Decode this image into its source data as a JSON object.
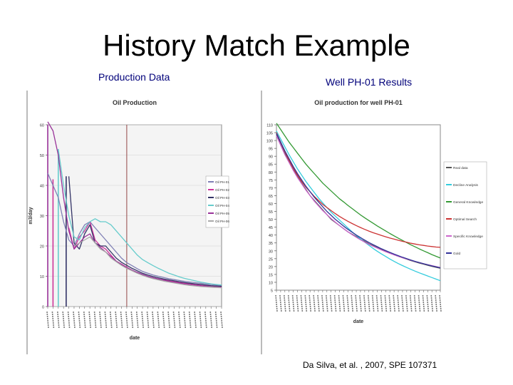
{
  "slide": {
    "title": "History Match Example",
    "left_label": "Production Data",
    "right_label": "Well PH-01 Results",
    "citation": "Da Silva, et al. , 2007, SPE 107371"
  },
  "chart_data": [
    {
      "type": "line",
      "title": "Oil Production",
      "xlabel": "date",
      "ylabel": "m3/day",
      "ylim": [
        0,
        60
      ],
      "yticks": [
        0,
        10,
        20,
        30,
        40,
        50,
        60
      ],
      "x": [
        0,
        1,
        2,
        3,
        4,
        5,
        6,
        7,
        8,
        9,
        10,
        11,
        12,
        13,
        14,
        15,
        16,
        17,
        18,
        19,
        20,
        21,
        22,
        23,
        24,
        25,
        26,
        27,
        28,
        29,
        30,
        31,
        32,
        33
      ],
      "grid": true,
      "legend_position": "right",
      "marker_x": 15,
      "series": [
        {
          "name": "Oil PH-01",
          "color": "#7f7fb5",
          "values": [
            44,
            40,
            36,
            28,
            22,
            20,
            24,
            27,
            28,
            26,
            24,
            22,
            20,
            18,
            16,
            14.5,
            13.5,
            12.5,
            11.6,
            11,
            10.4,
            10,
            9.6,
            9.2,
            8.9,
            8.6,
            8.3,
            8.1,
            7.9,
            7.7,
            7.5,
            7.3,
            7.1,
            7
          ]
        },
        {
          "name": "Oil PH-02",
          "color": "#cc3399",
          "values": [
            null,
            null,
            null,
            null,
            26,
            19,
            23,
            25,
            28,
            22,
            20,
            19,
            17,
            15,
            14,
            13,
            12,
            11.2,
            10.5,
            10,
            9.5,
            9.1,
            8.8,
            8.5,
            8.2,
            7.9,
            7.7,
            7.5,
            7.3,
            7.1,
            6.9,
            6.8,
            6.7,
            6.6
          ]
        },
        {
          "name": "Oil PH-03",
          "color": "#333366",
          "values": [
            null,
            null,
            null,
            null,
            43,
            21,
            19,
            24,
            27,
            21,
            20,
            20,
            18,
            16,
            14.6,
            13.6,
            12.6,
            11.8,
            11,
            10.4,
            9.9,
            9.5,
            9.1,
            8.8,
            8.5,
            8.2,
            7.9,
            7.7,
            7.5,
            7.3,
            7.1,
            6.9,
            6.8,
            6.7
          ]
        },
        {
          "name": "Oil PH-04",
          "color": "#66cccc",
          "values": [
            null,
            null,
            52,
            40,
            30,
            23,
            22,
            26,
            28,
            29,
            28,
            28,
            27,
            25,
            23,
            21,
            19,
            17,
            15.5,
            14.5,
            13.5,
            12.6,
            11.8,
            11,
            10.4,
            9.8,
            9.3,
            8.9,
            8.5,
            8.1,
            7.8,
            7.5,
            7.3,
            7.1
          ]
        },
        {
          "name": "Oil PH-05",
          "color": "#993399",
          "values": [
            61,
            58,
            50,
            36,
            25,
            19,
            21,
            23,
            24,
            21,
            19.5,
            18,
            16.5,
            15,
            13.8,
            12.8,
            12,
            11.3,
            10.6,
            10,
            9.5,
            9.1,
            8.7,
            8.3,
            8,
            7.7,
            7.4,
            7.2,
            7,
            6.8,
            6.6,
            6.5,
            6.4,
            6.3
          ]
        },
        {
          "name": "Oil PH-06",
          "color": "#aaaaaa",
          "values": [
            null,
            null,
            null,
            null,
            null,
            20,
            21,
            22,
            23,
            21,
            19,
            18,
            16,
            14.8,
            13.6,
            12.6,
            11.8,
            11,
            10.3,
            9.7,
            9.2,
            8.8,
            8.4,
            8.1,
            7.8,
            7.5,
            7.2,
            7,
            6.8,
            6.6,
            6.5,
            6.4,
            6.3,
            6.2
          ]
        }
      ],
      "drop_lines": [
        {
          "x": 0,
          "from": 60,
          "color": "#993399"
        },
        {
          "x": 1,
          "from": 42,
          "color": "#cc3399"
        },
        {
          "x": 2,
          "from": 52,
          "color": "#66cccc"
        },
        {
          "x": 3.5,
          "from": 43,
          "color": "#333366"
        }
      ]
    },
    {
      "type": "line",
      "title": "Oil production for well PH-01",
      "xlabel": "date",
      "ylabel": "oil rate (m3/day)",
      "ylim": [
        5,
        110
      ],
      "yticks": [
        5,
        10,
        15,
        20,
        25,
        30,
        35,
        40,
        45,
        50,
        55,
        60,
        65,
        70,
        75,
        80,
        85,
        90,
        95,
        100,
        105,
        110
      ],
      "x": [
        0,
        1,
        2,
        3,
        4,
        5,
        6,
        7,
        8,
        9,
        10,
        11,
        12,
        13,
        14,
        15,
        16,
        17,
        18,
        19,
        20,
        21,
        22,
        23,
        24,
        25,
        26,
        27,
        28,
        29,
        30,
        31,
        32,
        33,
        34,
        35,
        36,
        37,
        38,
        39
      ],
      "grid": false,
      "legend_position": "right",
      "series": [
        {
          "name": "Real data",
          "color": "#555555",
          "values": [
            104,
            98,
            92,
            87,
            82,
            77,
            73,
            69,
            65,
            62,
            59,
            56,
            53,
            50,
            48,
            46,
            44,
            42,
            40.5,
            39,
            37.5,
            36,
            34.5,
            33.3,
            32,
            30.8,
            29.6,
            28.5,
            27.5,
            26.5,
            25.6,
            24.7,
            23.8,
            23,
            22.2,
            21.5,
            20.8,
            20.1,
            19.5,
            18.9
          ]
        },
        {
          "name": "Decline Analysis",
          "color": "#33ccdd",
          "values": [
            106,
            101,
            96,
            91,
            86.5,
            82,
            78,
            74,
            70.5,
            67,
            63.5,
            60.5,
            57.5,
            54.5,
            52,
            49.5,
            47,
            44.5,
            42,
            39.8,
            37.6,
            35.5,
            33.5,
            31.5,
            29.7,
            28,
            26.4,
            24.8,
            23.3,
            21.9,
            20.6,
            19.4,
            18.2,
            17.1,
            16,
            15,
            14,
            13,
            12,
            11
          ]
        },
        {
          "name": "General Knowledge",
          "color": "#339933",
          "values": [
            111,
            107,
            103,
            99,
            95.5,
            92,
            88.5,
            85,
            82,
            79,
            76,
            73,
            70.5,
            68,
            65.5,
            63,
            61,
            58.8,
            56.8,
            54.8,
            52.8,
            51,
            49.2,
            47.5,
            45.8,
            44.2,
            42.6,
            41,
            39.5,
            38,
            36.6,
            35.2,
            33.8,
            32.5,
            31.2,
            30,
            28.8,
            27.6,
            26.5,
            25.4
          ]
        },
        {
          "name": "Optimal Search",
          "color": "#cc3333",
          "values": [
            105,
            99,
            93,
            87.5,
            82.5,
            78,
            74,
            70.5,
            67.5,
            64.5,
            62,
            59.5,
            57.5,
            55.5,
            53.6,
            51.8,
            50.2,
            48.7,
            47.3,
            46,
            44.8,
            43.6,
            42.5,
            41.5,
            40.6,
            39.7,
            38.9,
            38.1,
            37.4,
            36.7,
            36,
            35.4,
            34.8,
            34.3,
            33.8,
            33.4,
            33,
            32.7,
            32.4,
            32.2
          ]
        },
        {
          "name": "Specific Knowledge",
          "color": "#cc66cc",
          "values": [
            103,
            97,
            91,
            86,
            81,
            76.5,
            72.5,
            68.5,
            65,
            61.5,
            58.5,
            55.5,
            53,
            50.5,
            48.2,
            46,
            44,
            42,
            40.2,
            38.6,
            37,
            35.5,
            34.2,
            32.9,
            31.7,
            30.5,
            29.4,
            28.4,
            27.4,
            26.5,
            25.6,
            24.8,
            24,
            23.2,
            22.5,
            21.8,
            21.2,
            20.6,
            20,
            19.4
          ]
        },
        {
          "name": "Gold",
          "color": "#333399",
          "values": [
            104.5,
            99,
            93.5,
            88.5,
            83.5,
            79,
            75,
            71,
            67.5,
            64,
            61,
            58,
            55,
            52.5,
            50,
            47.8,
            45.6,
            43.6,
            41.8,
            40,
            38.4,
            36.8,
            35.3,
            33.9,
            32.6,
            31.3,
            30.1,
            29,
            27.9,
            26.9,
            25.9,
            25,
            24.1,
            23.3,
            22.5,
            21.8,
            21.1,
            20.4,
            19.8,
            19.2
          ]
        }
      ]
    }
  ]
}
